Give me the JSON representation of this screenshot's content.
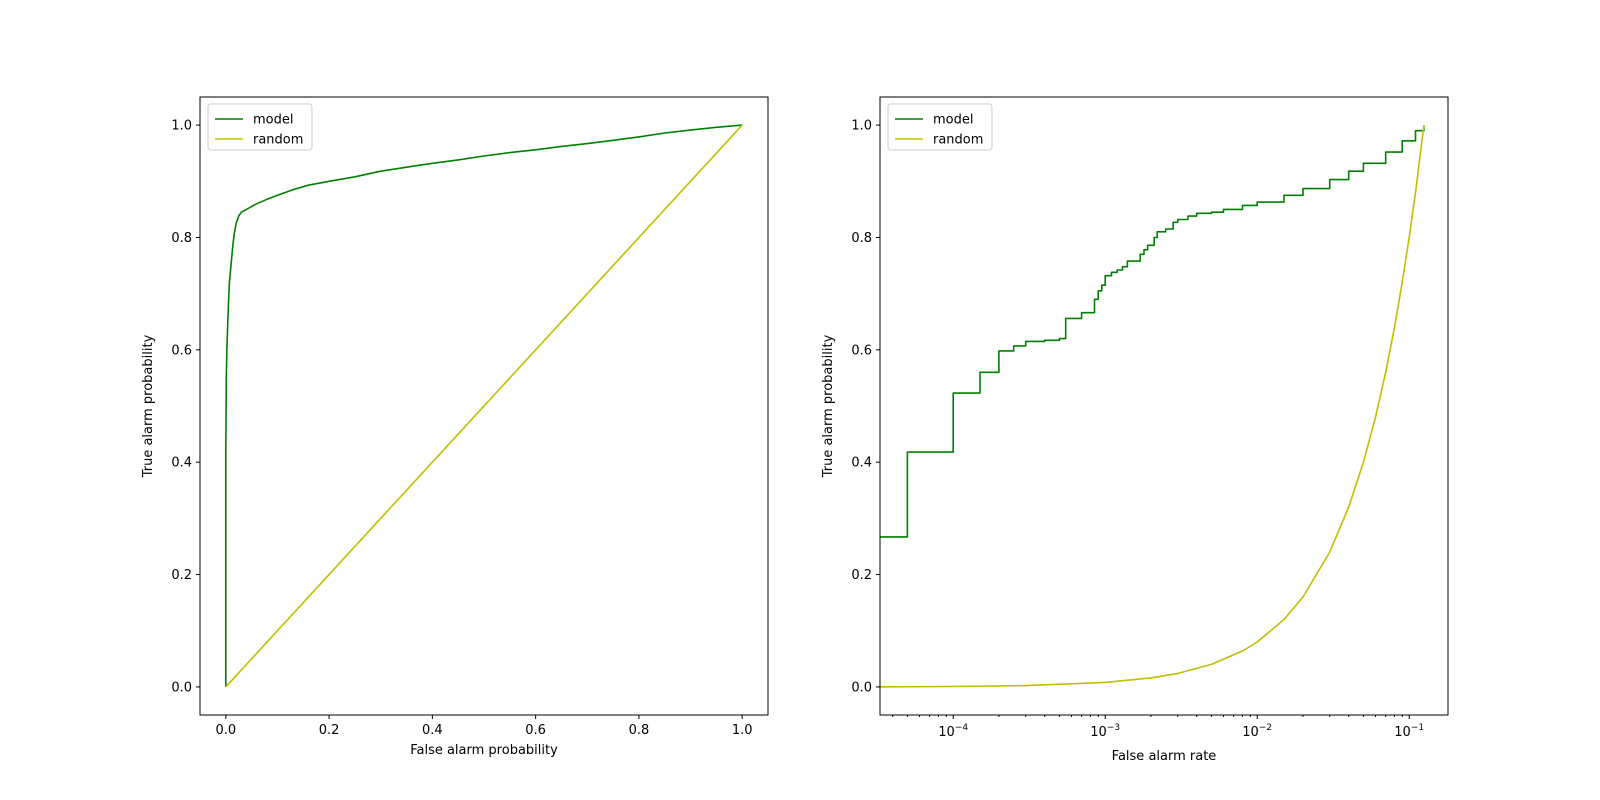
{
  "colors": {
    "model": "#008000",
    "random": "#bfbf00"
  },
  "chart_data": [
    {
      "type": "line",
      "xlabel": "False alarm probability",
      "ylabel": "True alarm probability",
      "xscale": "linear",
      "xlim": [
        -0.05,
        1.05
      ],
      "ylim": [
        -0.05,
        1.05
      ],
      "xticks": [
        0.0,
        0.2,
        0.4,
        0.6,
        0.8,
        1.0
      ],
      "xtick_labels": [
        "0.0",
        "0.2",
        "0.4",
        "0.6",
        "0.8",
        "1.0"
      ],
      "yticks": [
        0.0,
        0.2,
        0.4,
        0.6,
        0.8,
        1.0
      ],
      "ytick_labels": [
        "0.0",
        "0.2",
        "0.4",
        "0.6",
        "0.8",
        "1.0"
      ],
      "grid": false,
      "legend": "upper left",
      "series": [
        {
          "name": "model",
          "color": "model",
          "step": false,
          "x": [
            0,
            0,
            0.001,
            0.002,
            0.003,
            0.005,
            0.007,
            0.01,
            0.013,
            0.016,
            0.02,
            0.025,
            0.03,
            0.04,
            0.05,
            0.06,
            0.08,
            0.1,
            0.13,
            0.16,
            0.2,
            0.25,
            0.3,
            0.35,
            0.4,
            0.45,
            0.5,
            0.55,
            0.6,
            0.65,
            0.7,
            0.75,
            0.8,
            0.85,
            0.9,
            0.95,
            1.0
          ],
          "y": [
            0,
            0.42,
            0.55,
            0.6,
            0.63,
            0.68,
            0.72,
            0.75,
            0.78,
            0.805,
            0.825,
            0.838,
            0.845,
            0.85,
            0.855,
            0.86,
            0.868,
            0.875,
            0.885,
            0.893,
            0.9,
            0.908,
            0.918,
            0.925,
            0.932,
            0.938,
            0.945,
            0.951,
            0.956,
            0.962,
            0.967,
            0.973,
            0.979,
            0.986,
            0.991,
            0.996,
            1.0
          ]
        },
        {
          "name": "random",
          "color": "random",
          "step": false,
          "x": [
            0,
            1
          ],
          "y": [
            0,
            1
          ]
        }
      ]
    },
    {
      "type": "line",
      "xlabel": "False alarm rate",
      "ylabel": "True alarm probability",
      "xscale": "log",
      "xlim": [
        3.3e-05,
        0.18
      ],
      "ylim": [
        -0.05,
        1.05
      ],
      "xticks": [
        0.0001,
        0.001,
        0.01,
        0.1
      ],
      "xtick_labels": [
        {
          "base": "10",
          "exp": "−4"
        },
        {
          "base": "10",
          "exp": "−3"
        },
        {
          "base": "10",
          "exp": "−2"
        },
        {
          "base": "10",
          "exp": "−1"
        }
      ],
      "yticks": [
        0.0,
        0.2,
        0.4,
        0.6,
        0.8,
        1.0
      ],
      "ytick_labels": [
        "0.0",
        "0.2",
        "0.4",
        "0.6",
        "0.8",
        "1.0"
      ],
      "grid": false,
      "legend": "upper left",
      "series": [
        {
          "name": "model",
          "color": "model",
          "step": true,
          "x": [
            3.3e-05,
            5e-05,
            0.0001,
            0.00015,
            0.0002,
            0.00025,
            0.0003,
            0.0004,
            0.0005,
            0.00055,
            0.0007,
            0.00085,
            0.0009,
            0.00095,
            0.001,
            0.0011,
            0.0012,
            0.0013,
            0.0014,
            0.0017,
            0.0018,
            0.0019,
            0.0021,
            0.0022,
            0.0025,
            0.0028,
            0.003,
            0.0035,
            0.004,
            0.005,
            0.006,
            0.008,
            0.01,
            0.015,
            0.02,
            0.03,
            0.04,
            0.05,
            0.07,
            0.09,
            0.11,
            0.125
          ],
          "y": [
            0.267,
            0.418,
            0.523,
            0.56,
            0.598,
            0.607,
            0.615,
            0.617,
            0.62,
            0.656,
            0.666,
            0.69,
            0.705,
            0.715,
            0.732,
            0.738,
            0.742,
            0.748,
            0.758,
            0.77,
            0.778,
            0.786,
            0.8,
            0.81,
            0.815,
            0.827,
            0.832,
            0.838,
            0.843,
            0.845,
            0.85,
            0.857,
            0.863,
            0.875,
            0.887,
            0.903,
            0.918,
            0.932,
            0.952,
            0.972,
            0.99,
            1.0
          ]
        },
        {
          "name": "random",
          "color": "random",
          "step": false,
          "x": [
            3.3e-05,
            0.0001,
            0.0003,
            0.001,
            0.002,
            0.003,
            0.005,
            0.008,
            0.01,
            0.015,
            0.02,
            0.03,
            0.04,
            0.05,
            0.06,
            0.07,
            0.08,
            0.09,
            0.1,
            0.11,
            0.125
          ],
          "y": [
            0,
            0.0008,
            0.0024,
            0.008,
            0.016,
            0.024,
            0.04,
            0.064,
            0.08,
            0.12,
            0.16,
            0.24,
            0.32,
            0.4,
            0.48,
            0.56,
            0.64,
            0.72,
            0.8,
            0.88,
            1.0
          ]
        }
      ]
    }
  ]
}
